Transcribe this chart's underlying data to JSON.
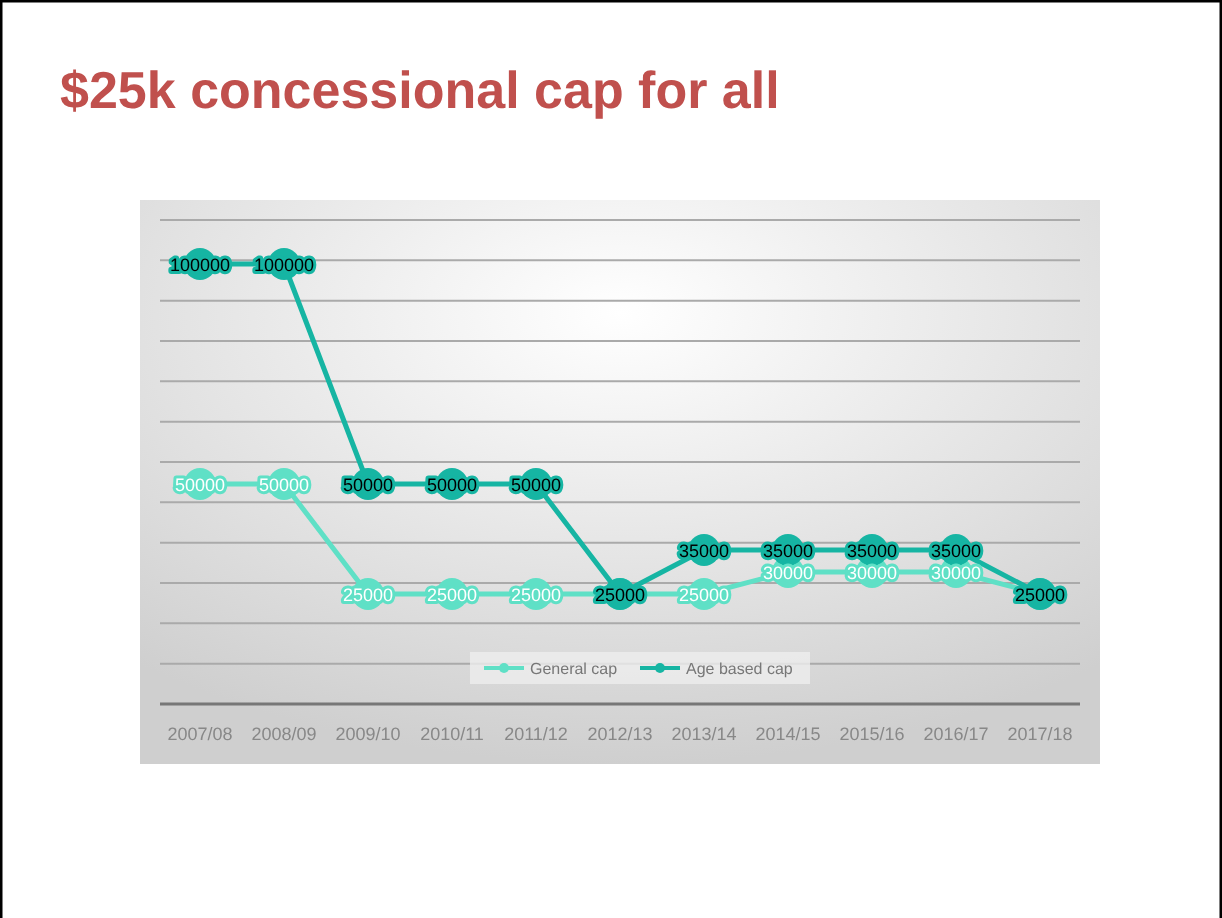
{
  "chart_data": {
    "type": "line",
    "title": "$25k concessional cap for all",
    "categories": [
      "2007/08",
      "2008/09",
      "2009/10",
      "2010/11",
      "2011/12",
      "2012/13",
      "2013/14",
      "2014/15",
      "2015/16",
      "2016/17",
      "2017/18"
    ],
    "series": [
      {
        "name": "General cap",
        "color": "#5fe0c6",
        "values": [
          50000,
          50000,
          25000,
          25000,
          25000,
          25000,
          25000,
          30000,
          30000,
          30000,
          25000
        ],
        "value_labels": [
          "50000",
          "50000",
          "25000",
          "25000",
          "25000",
          null,
          "25000",
          "30000",
          "30000",
          "30000",
          null
        ]
      },
      {
        "name": "Age based cap",
        "color": "#16b5a3",
        "values": [
          100000,
          100000,
          50000,
          50000,
          50000,
          25000,
          35000,
          35000,
          35000,
          35000,
          25000
        ]
      }
    ],
    "data_labels": true,
    "marker": "circle",
    "legend": "bottom",
    "grid": "y"
  }
}
